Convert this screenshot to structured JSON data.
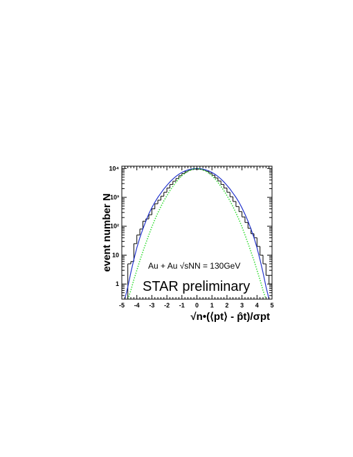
{
  "chart_data": {
    "type": "line",
    "xlabel": "√n•(⟨pt⟩ - p̂t)/σpt",
    "ylabel": "event number N",
    "xlim": [
      -5,
      5
    ],
    "ylim": [
      0.3,
      12000
    ],
    "yscale": "log",
    "x_ticks": [
      "-5",
      "-4",
      "-3",
      "-2",
      "-1",
      "0",
      "1",
      "2",
      "3",
      "4",
      "5"
    ],
    "y_ticks": [
      "1",
      "10",
      "10²",
      "10³",
      "10⁴"
    ],
    "annotations": [
      "Au + Au   √sNN = 130GeV",
      "STAR preliminary"
    ],
    "series": [
      {
        "style": "histogram",
        "color": "#000000",
        "bin_edges": [
          -5.0,
          -4.8,
          -4.6,
          -4.4,
          -4.2,
          -4.0,
          -3.8,
          -3.6,
          -3.4,
          -3.2,
          -3.0,
          -2.8,
          -2.6,
          -2.4,
          -2.2,
          -2.0,
          -1.8,
          -1.6,
          -1.4,
          -1.2,
          -1.0,
          -0.8,
          -0.6,
          -0.4,
          -0.2,
          0.0,
          0.2,
          0.4,
          0.6,
          0.8,
          1.0,
          1.2,
          1.4,
          1.6,
          1.8,
          2.0,
          2.2,
          2.4,
          2.6,
          2.8,
          3.0,
          3.2,
          3.4,
          3.6,
          3.8,
          4.0,
          4.2,
          4.4,
          4.6,
          4.8,
          5.0
        ],
        "values": [
          0.3,
          0.3,
          5,
          6,
          25,
          50,
          80,
          150,
          180,
          250,
          400,
          600,
          800,
          1100,
          1500,
          2100,
          2800,
          3600,
          4500,
          5600,
          6700,
          7700,
          8600,
          9200,
          9500,
          9500,
          9300,
          8700,
          7900,
          6900,
          5800,
          4700,
          3700,
          2800,
          2100,
          1500,
          1050,
          720,
          480,
          320,
          210,
          135,
          85,
          55,
          40,
          20,
          10,
          5,
          2,
          1
        ]
      },
      {
        "style": "curve",
        "color": "#2233cc",
        "x": [
          -4.8,
          -4.6,
          -4.4,
          -4.2,
          -4.0,
          -3.8,
          -3.6,
          -3.4,
          -3.2,
          -3.0,
          -2.8,
          -2.6,
          -2.4,
          -2.2,
          -2.0,
          -1.8,
          -1.6,
          -1.4,
          -1.2,
          -1.0,
          -0.8,
          -0.6,
          -0.4,
          -0.2,
          0.0,
          0.2,
          0.4,
          0.6,
          0.8,
          1.0,
          1.2,
          1.4,
          1.6,
          1.8,
          2.0,
          2.2,
          2.4,
          2.6,
          2.8,
          3.0,
          3.2,
          3.4,
          3.6,
          3.8,
          4.0,
          4.2,
          4.4,
          4.6,
          4.8
        ],
        "y": [
          0.3,
          0.8,
          2.5,
          7,
          18,
          40,
          80,
          150,
          270,
          440,
          680,
          1000,
          1400,
          1950,
          2600,
          3400,
          4300,
          5300,
          6300,
          7300,
          8200,
          8900,
          9500,
          9850,
          10000,
          9850,
          9500,
          8900,
          8200,
          7300,
          6300,
          5300,
          4300,
          3400,
          2600,
          1950,
          1400,
          1000,
          680,
          430,
          260,
          150,
          80,
          40,
          18,
          7,
          2.5,
          0.8,
          0.3
        ]
      },
      {
        "style": "dotted",
        "color": "#33dd33",
        "x": [
          -4.6,
          -4.4,
          -4.2,
          -4.0,
          -3.8,
          -3.6,
          -3.4,
          -3.2,
          -3.0,
          -2.8,
          -2.6,
          -2.4,
          -2.2,
          -2.0,
          -1.8,
          -1.6,
          -1.4,
          -1.2,
          -1.0,
          -0.8,
          -0.6,
          -0.4,
          -0.2,
          0.0,
          0.2,
          0.4,
          0.6,
          0.8,
          1.0,
          1.2,
          1.4,
          1.6,
          1.8,
          2.0,
          2.2,
          2.4,
          2.6,
          2.8,
          3.0,
          3.2,
          3.4,
          3.6,
          3.8,
          4.0,
          4.2,
          4.4,
          4.6
        ],
        "y": [
          0.3,
          0.6,
          1.4,
          3,
          6.5,
          13,
          26,
          50,
          95,
          170,
          290,
          480,
          760,
          1150,
          1700,
          2400,
          3300,
          4400,
          5600,
          6800,
          8000,
          9000,
          9700,
          10000,
          9700,
          9000,
          8000,
          6800,
          5600,
          4400,
          3300,
          2400,
          1700,
          1150,
          760,
          480,
          290,
          170,
          95,
          50,
          26,
          13,
          6.5,
          3,
          1.4,
          0.6,
          0.3
        ]
      }
    ]
  }
}
